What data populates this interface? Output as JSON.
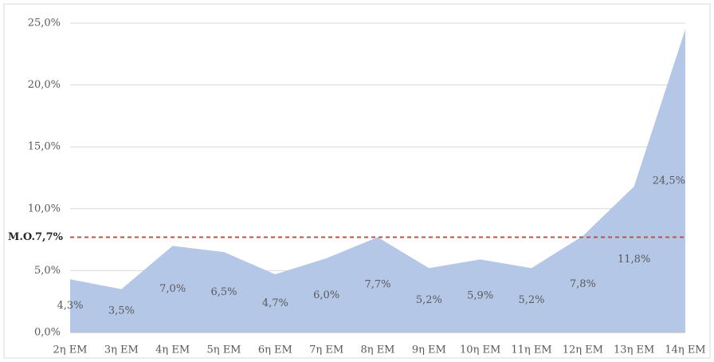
{
  "chart_data": {
    "type": "area",
    "categories": [
      "2η ΕΜ",
      "3η ΕΜ",
      "4η ΕΜ",
      "5η ΕΜ",
      "6η ΕΜ",
      "7η ΕΜ",
      "8η ΕΜ",
      "9η ΕΜ",
      "10η ΕΜ",
      "11η ΕΜ",
      "12η ΕΜ",
      "13η ΕΜ",
      "14η ΕΜ"
    ],
    "values": [
      4.3,
      3.5,
      7.0,
      6.5,
      4.7,
      6.0,
      7.7,
      5.2,
      5.9,
      5.2,
      7.8,
      11.8,
      24.5
    ],
    "value_labels": [
      "4,3%",
      "3,5%",
      "7,0%",
      "6,5%",
      "4,7%",
      "6,0%",
      "7,7%",
      "5,2%",
      "5,9%",
      "5,2%",
      "7,8%",
      "11,8%",
      "24,5%"
    ],
    "color": "#b4c7e7",
    "ylim": [
      0,
      25
    ],
    "yticks": [
      {
        "value": 0,
        "label": "0,0%"
      },
      {
        "value": 5,
        "label": "5,0%"
      },
      {
        "value": 10,
        "label": "10,0%"
      },
      {
        "value": 15,
        "label": "15,0%"
      },
      {
        "value": 20,
        "label": "20,0%"
      },
      {
        "value": 25,
        "label": "25,0%"
      }
    ],
    "grid": true,
    "reference_line": {
      "value": 7.7,
      "label": "M.O.7,7%",
      "color": "#c0504d"
    }
  }
}
